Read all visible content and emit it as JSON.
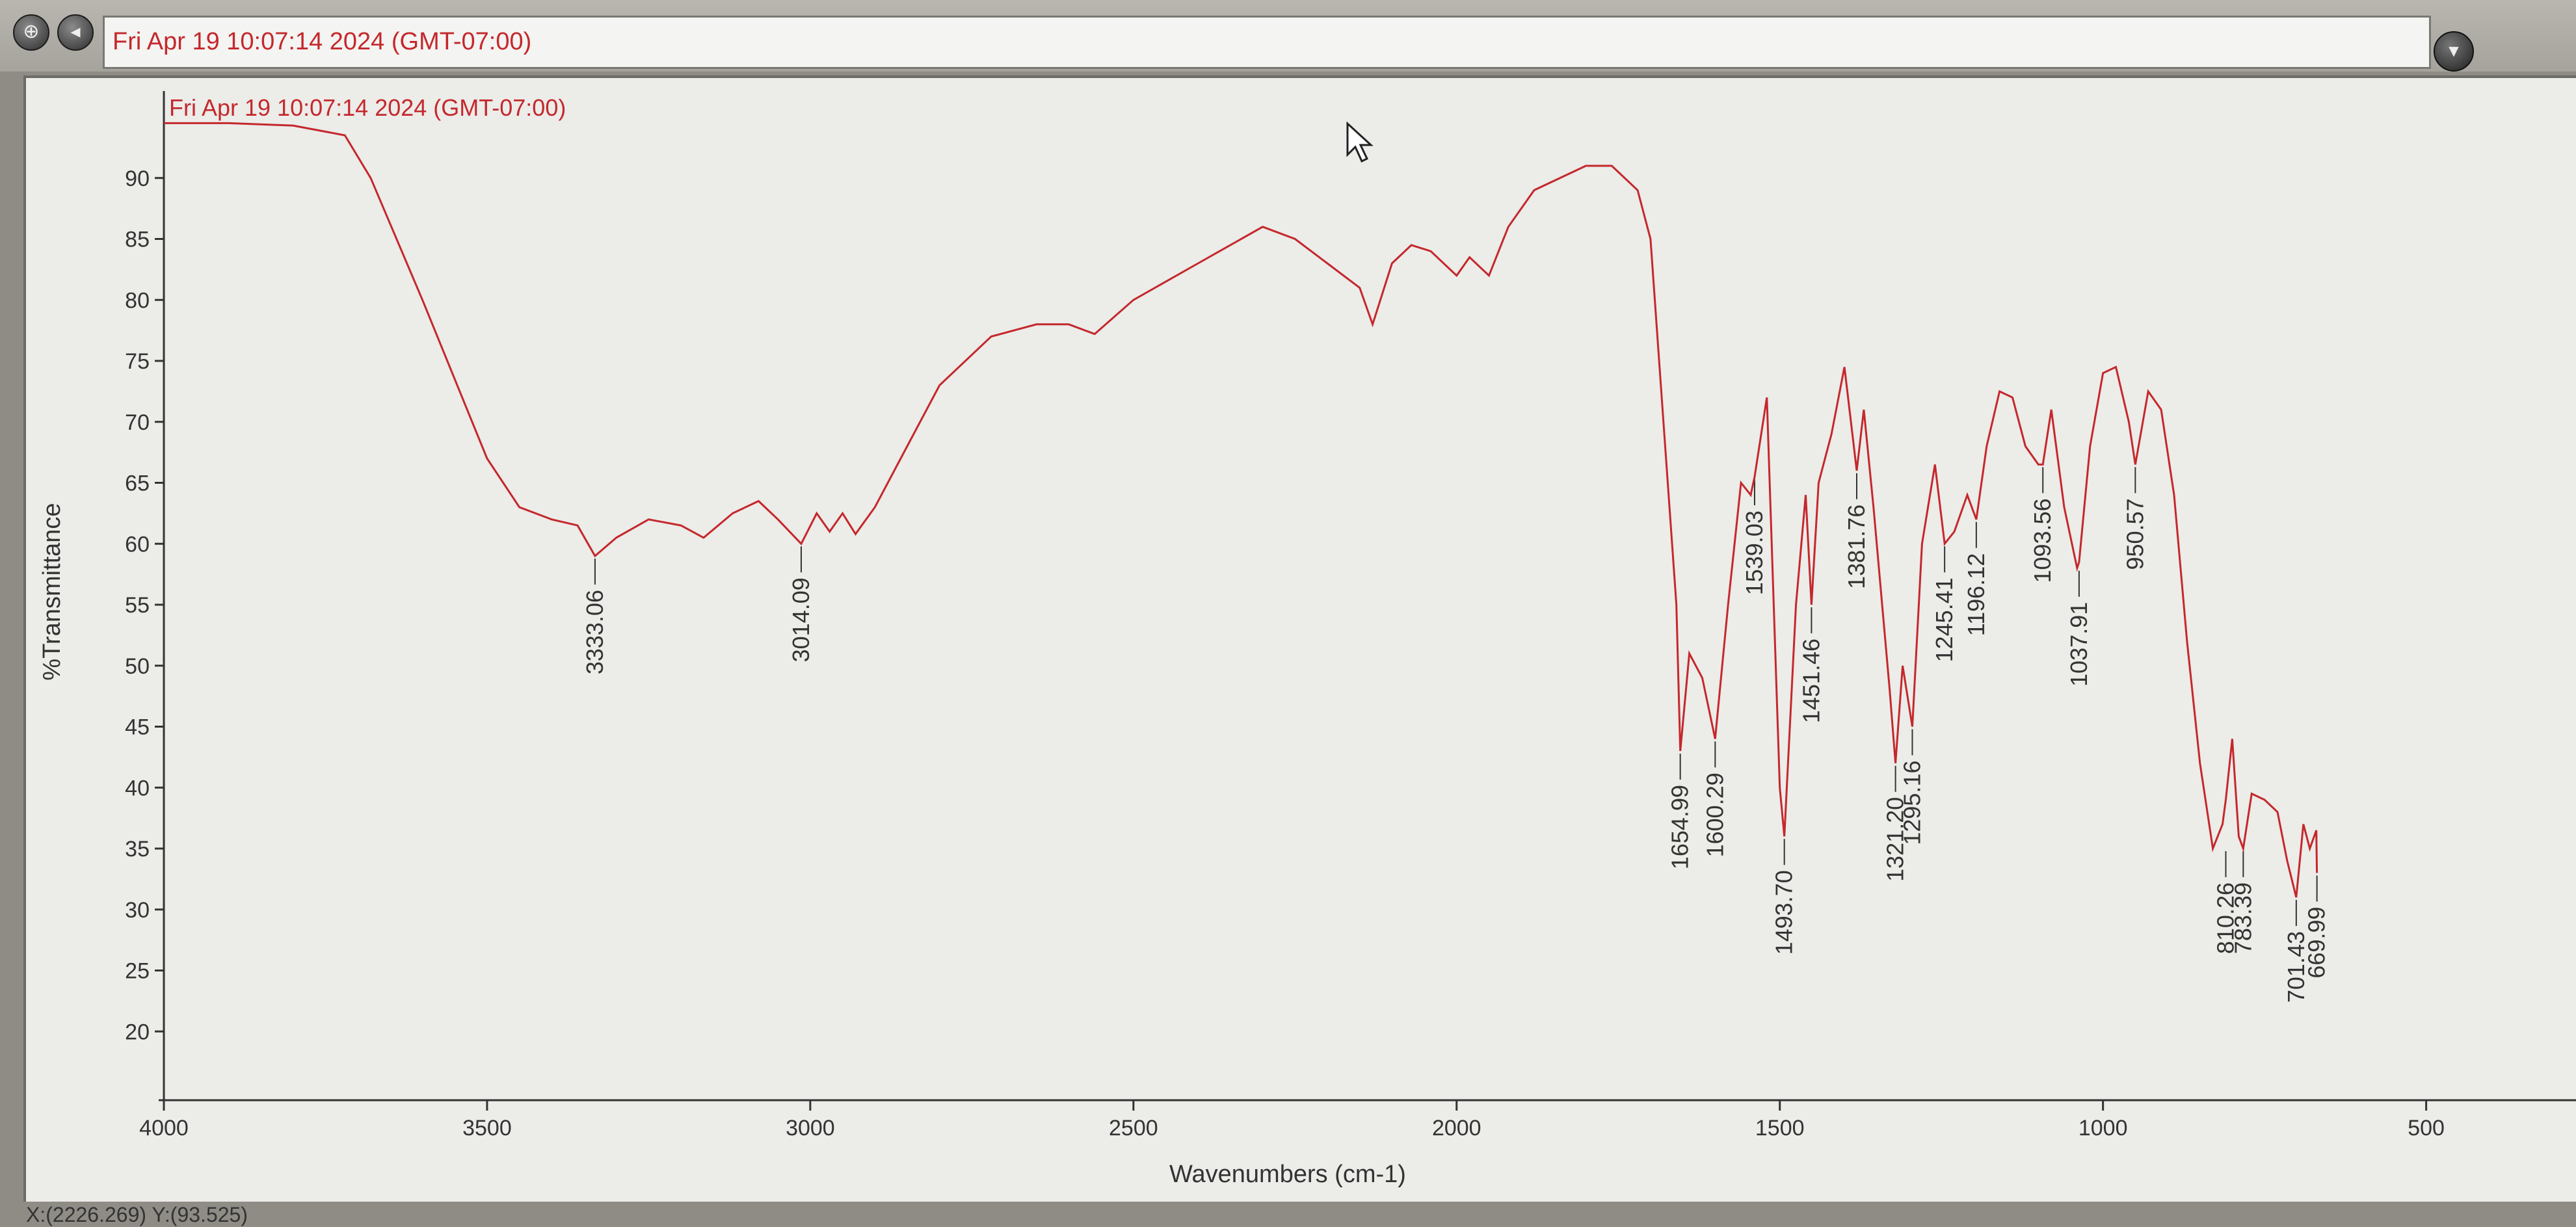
{
  "window": {
    "title": "Fri Apr 19 10:07:14 2024 (GMT-07:00)",
    "left_button_1_icon": "globe-icon",
    "left_button_2_icon": "back-icon",
    "dropdown_icon": "chevron-down-icon"
  },
  "status": {
    "coordinate_readout": "X:(2226.269) Y:(93.525)"
  },
  "colors": {
    "trace": "#c4282c",
    "panel": "#ecece9",
    "axis": "#333333"
  },
  "chart_data": {
    "type": "line",
    "title": "Fri Apr 19 10:07:14 2024 (GMT-07:00)",
    "xlabel": "Wavenumbers (cm-1)",
    "ylabel": "%Transmittance",
    "xlim": [
      4000,
      400
    ],
    "ylim": [
      15,
      95
    ],
    "x_reversed": true,
    "grid": false,
    "x_ticks": [
      4000,
      3500,
      3000,
      2500,
      2000,
      1500,
      1000,
      500
    ],
    "y_ticks": [
      20,
      25,
      30,
      35,
      40,
      45,
      50,
      55,
      60,
      65,
      70,
      75,
      80,
      85,
      90
    ],
    "series": [
      {
        "x": [
          4000,
          3900,
          3800,
          3720,
          3680,
          3600,
          3500,
          3450,
          3400,
          3360,
          3333,
          3300,
          3250,
          3200,
          3165,
          3120,
          3080,
          3050,
          3014,
          2990,
          2970,
          2950,
          2930,
          2900,
          2860,
          2800,
          2720,
          2650,
          2600,
          2560,
          2500,
          2400,
          2300,
          2250,
          2200,
          2150,
          2130,
          2100,
          2070,
          2040,
          2000,
          1980,
          1950,
          1920,
          1880,
          1800,
          1760,
          1720,
          1700,
          1680,
          1660,
          1654,
          1640,
          1620,
          1600,
          1580,
          1560,
          1545,
          1539,
          1520,
          1500,
          1493,
          1475,
          1460,
          1451,
          1440,
          1420,
          1400,
          1381,
          1370,
          1355,
          1330,
          1321,
          1310,
          1295,
          1280,
          1260,
          1245,
          1230,
          1210,
          1196,
          1180,
          1160,
          1140,
          1120,
          1100,
          1093,
          1080,
          1060,
          1040,
          1037,
          1020,
          1000,
          980,
          960,
          950,
          930,
          910,
          890,
          870,
          850,
          830,
          815,
          810,
          800,
          790,
          783,
          770,
          750,
          730,
          715,
          701,
          690,
          680,
          670,
          669
        ],
        "y": [
          94.5,
          94.5,
          94.3,
          93.5,
          90,
          80,
          67,
          63,
          62,
          61.5,
          59,
          60.5,
          62,
          61.5,
          60.5,
          62.5,
          63.5,
          62,
          60,
          62.5,
          61,
          62.5,
          60.8,
          63,
          67,
          73,
          77,
          78,
          78,
          77.2,
          80,
          83,
          86,
          85,
          83,
          81,
          78,
          83,
          84.5,
          84,
          82,
          83.5,
          82,
          86,
          89,
          91,
          91,
          89,
          85,
          70,
          55,
          43,
          51,
          49,
          44,
          55,
          65,
          64,
          65.5,
          72,
          40,
          36,
          55,
          64,
          55,
          65,
          69,
          74.5,
          66,
          71,
          63,
          48,
          42,
          50,
          45,
          60,
          66.5,
          60,
          61,
          64,
          62,
          68,
          72.5,
          72,
          68,
          66.5,
          66.5,
          71,
          63,
          58,
          58.5,
          68,
          74,
          74.5,
          70,
          66.5,
          72.5,
          71,
          64,
          52,
          42,
          35,
          37,
          39,
          44,
          36,
          35,
          39.5,
          39,
          38,
          34,
          31,
          37,
          35,
          36.5,
          33
        ]
      }
    ],
    "peak_labels": [
      {
        "x": 3333,
        "y": 59,
        "text": "3333.06"
      },
      {
        "x": 3014,
        "y": 60,
        "text": "3014.09"
      },
      {
        "x": 1654,
        "y": 43,
        "text": "1654.99"
      },
      {
        "x": 1600,
        "y": 44,
        "text": "1600.29"
      },
      {
        "x": 1539,
        "y": 65.5,
        "text": "1539.03"
      },
      {
        "x": 1493,
        "y": 36,
        "text": "1493.70"
      },
      {
        "x": 1451,
        "y": 55,
        "text": "1451.46"
      },
      {
        "x": 1381,
        "y": 66,
        "text": "1381.76"
      },
      {
        "x": 1321,
        "y": 42,
        "text": "1321.20"
      },
      {
        "x": 1295,
        "y": 45,
        "text": "1295.16"
      },
      {
        "x": 1245,
        "y": 60,
        "text": "1245.41"
      },
      {
        "x": 1196,
        "y": 62,
        "text": "1196.12"
      },
      {
        "x": 1093,
        "y": 66.5,
        "text": "1093.56"
      },
      {
        "x": 1037,
        "y": 58,
        "text": "1037.91"
      },
      {
        "x": 950,
        "y": 66.5,
        "text": "950.57"
      },
      {
        "x": 810,
        "y": 35,
        "text": "810.26"
      },
      {
        "x": 783,
        "y": 35,
        "text": "783.39"
      },
      {
        "x": 701,
        "y": 31,
        "text": "701.43"
      },
      {
        "x": 669,
        "y": 33,
        "text": "669.99"
      }
    ]
  }
}
